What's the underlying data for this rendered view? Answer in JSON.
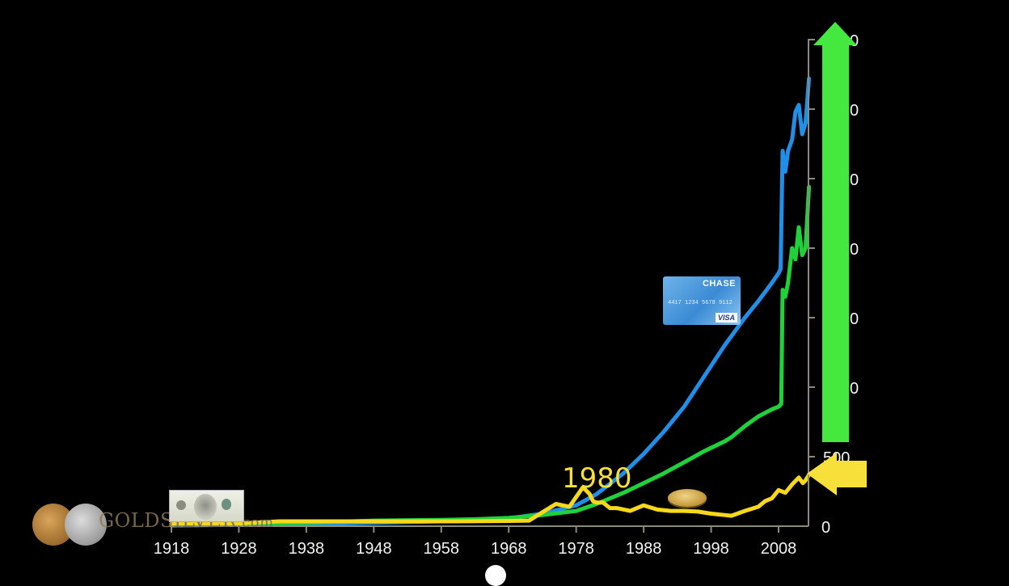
{
  "chart_data": {
    "type": "line",
    "title": "",
    "xlabel": "",
    "ylabel": "",
    "x_ticks": [
      "1918",
      "1928",
      "1938",
      "1948",
      "1958",
      "1968",
      "1978",
      "1988",
      "1998",
      "2008"
    ],
    "y_ticks_visible_labels": [
      "0",
      "500",
      "0",
      "0",
      "0",
      "0",
      "0",
      "0"
    ],
    "y_ticks": [
      0,
      500,
      1000,
      1500,
      2000,
      2500,
      3000,
      3500
    ],
    "xlim": [
      1918,
      2013
    ],
    "ylim": [
      0,
      3500
    ],
    "grid": false,
    "annotations": [
      {
        "text": "1980",
        "x": 1980,
        "y": 230,
        "color": "#f7e03a"
      }
    ],
    "images": [
      "hundred-dollar-bill",
      "chase-visa-credit-card",
      "gold-coin",
      "goldsilver-logo-coins"
    ],
    "arrows": [
      {
        "name": "green-up-arrow",
        "direction": "up",
        "color": "#45e83e"
      },
      {
        "name": "yellow-left-arrow",
        "direction": "left",
        "color": "#f7e03a"
      }
    ],
    "series": [
      {
        "name": "blue-series",
        "color": "#1f8fe8",
        "x": [
          1918,
          1928,
          1938,
          1948,
          1958,
          1963,
          1968,
          1973,
          1978,
          1981,
          1985,
          1988,
          1991,
          1994,
          1997,
          2000,
          2003,
          2005,
          2007,
          2008,
          2008.3,
          2008.6,
          2009,
          2009.4,
          2010,
          2010.5,
          2011,
          2011.5,
          2012,
          2012.5
        ],
        "y": [
          5,
          10,
          15,
          25,
          35,
          40,
          55,
          90,
          150,
          230,
          380,
          520,
          680,
          860,
          1080,
          1300,
          1500,
          1620,
          1750,
          1820,
          1850,
          2700,
          2550,
          2700,
          2780,
          2980,
          3030,
          2820,
          2900,
          3220
        ]
      },
      {
        "name": "green-series",
        "color": "#1fd23a",
        "x": [
          1918,
          1928,
          1938,
          1948,
          1958,
          1963,
          1968,
          1973,
          1978,
          1981,
          1985,
          1988,
          1991,
          1994,
          1997,
          2000,
          2001,
          2003,
          2005,
          2007,
          2008,
          2008.4,
          2008.6,
          2009,
          2009.4,
          2010,
          2010.5,
          2011,
          2011.5,
          2012,
          2012.5
        ],
        "y": [
          5,
          15,
          25,
          40,
          45,
          50,
          60,
          80,
          110,
          160,
          240,
          310,
          380,
          460,
          540,
          610,
          640,
          720,
          790,
          840,
          860,
          880,
          1700,
          1650,
          1750,
          2000,
          1920,
          2150,
          1950,
          2000,
          2440
        ]
      },
      {
        "name": "yellow-series",
        "color": "#f7d81a",
        "x": [
          1918,
          1928,
          1934,
          1940,
          1950,
          1960,
          1968,
          1971,
          1973,
          1975,
          1977,
          1979,
          1980,
          1980.5,
          1981,
          1982,
          1983,
          1984,
          1986,
          1988,
          1990,
          1992,
          1994,
          1996,
          1998,
          2000,
          2001,
          2003,
          2005,
          2006,
          2007,
          2008,
          2009,
          2010,
          2011,
          2011.6,
          2012,
          2012.5
        ],
        "y": [
          20,
          20,
          35,
          35,
          35,
          35,
          38,
          40,
          100,
          160,
          140,
          280,
          230,
          180,
          170,
          170,
          130,
          130,
          110,
          150,
          120,
          110,
          110,
          105,
          90,
          80,
          75,
          110,
          140,
          180,
          200,
          260,
          240,
          300,
          350,
          310,
          330,
          370
        ]
      }
    ]
  },
  "axis": {
    "x_labels": [
      "1918",
      "1928",
      "1938",
      "1948",
      "1958",
      "1968",
      "1978",
      "1988",
      "1998",
      "2008"
    ],
    "y_label_zero": "0",
    "y_label_500": "500",
    "y_label_partial": "0"
  },
  "annotation": {
    "year_label": "1980"
  },
  "logo": {
    "text_main": "GOLDS",
    "text_rest": "ILVER",
    "suffix": ".com"
  },
  "card": {
    "brand": "CHASE",
    "number": "4417 1234 5678 9112",
    "network": "VISA"
  }
}
